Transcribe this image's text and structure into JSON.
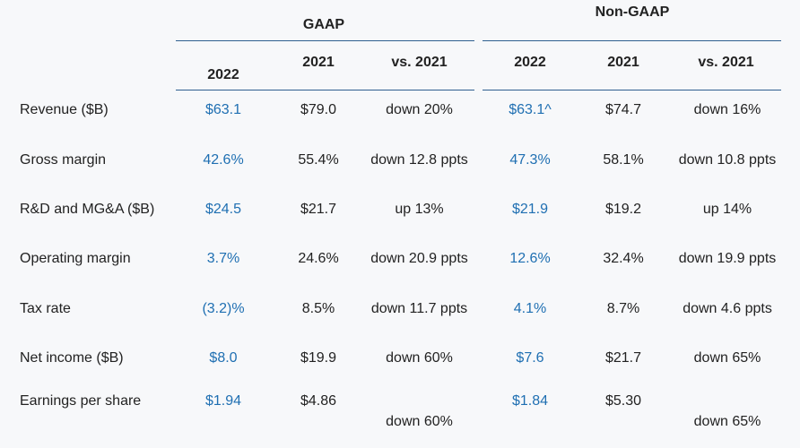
{
  "groups": {
    "gaap": "GAAP",
    "non_gaap": "Non-GAAP"
  },
  "columns": {
    "gaap": [
      "2022",
      "2021",
      "vs. 2021"
    ],
    "non_gaap": [
      "2022",
      "2021",
      "vs. 2021"
    ]
  },
  "colors": {
    "highlight": "#1f6fb2",
    "rule": "#2f5f8f",
    "text": "#222222"
  },
  "rows": [
    {
      "label": "Revenue ($B)",
      "gaap": [
        "$63.1",
        "$79.0",
        "down 20%"
      ],
      "non_gaap": [
        "$63.1^",
        "$74.7",
        "down 16%"
      ]
    },
    {
      "label": "Gross margin",
      "gaap": [
        "42.6%",
        "55.4%",
        "down 12.8 ppts"
      ],
      "non_gaap": [
        "47.3%",
        "58.1%",
        "down 10.8 ppts"
      ]
    },
    {
      "label": "R&D and MG&A ($B)",
      "gaap": [
        "$24.5",
        "$21.7",
        "up 13%"
      ],
      "non_gaap": [
        "$21.9",
        "$19.2",
        "up 14%"
      ]
    },
    {
      "label": "Operating margin",
      "gaap": [
        "3.7%",
        "24.6%",
        "down 20.9 ppts"
      ],
      "non_gaap": [
        "12.6%",
        "32.4%",
        "down 19.9 ppts"
      ]
    },
    {
      "label": "Tax rate",
      "gaap": [
        "(3.2)%",
        "8.5%",
        "down 11.7 ppts"
      ],
      "non_gaap": [
        "4.1%",
        "8.7%",
        "down 4.6 ppts"
      ]
    },
    {
      "label": "Net income ($B)",
      "gaap": [
        "$8.0",
        "$19.9",
        "down 60%"
      ],
      "non_gaap": [
        "$7.6",
        "$21.7",
        "down 65%"
      ]
    },
    {
      "label": "Earnings per share",
      "gaap": [
        "$1.94",
        "$4.86",
        "down 60%"
      ],
      "non_gaap": [
        "$1.84",
        "$5.30",
        "down 65%"
      ]
    }
  ]
}
